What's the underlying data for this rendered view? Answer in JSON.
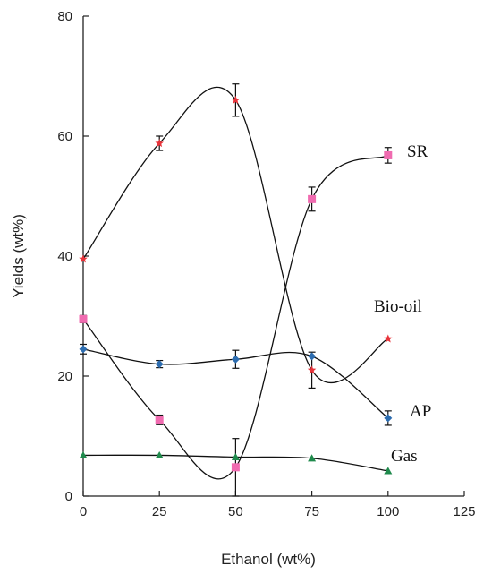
{
  "chart_data": {
    "type": "line",
    "title": "",
    "xlabel": "Ethanol (wt%)",
    "ylabel": "Yields (wt%)",
    "xlim": [
      0,
      125
    ],
    "ylim": [
      0,
      80
    ],
    "xticks": [
      0,
      25,
      50,
      75,
      100,
      125
    ],
    "yticks": [
      0,
      20,
      40,
      60,
      80
    ],
    "grid": false,
    "legend": "inline labels at right",
    "series": [
      {
        "name": "SR",
        "marker": "square",
        "color": "#f06bb0",
        "x": [
          0,
          25,
          50,
          75,
          100
        ],
        "y": [
          29.5,
          12.7,
          4.8,
          49.5,
          56.8
        ],
        "err": [
          0.6,
          0.8,
          4.8,
          2.0,
          1.3
        ]
      },
      {
        "name": "Bio-oil",
        "marker": "star",
        "color": "#e8333a",
        "x": [
          0,
          25,
          50,
          75,
          100
        ],
        "y": [
          39.5,
          58.8,
          66.0,
          21.0,
          26.2
        ],
        "err": [
          0,
          1.2,
          2.7,
          3.0,
          0
        ]
      },
      {
        "name": "AP",
        "marker": "diamond",
        "color": "#2d6db0",
        "x": [
          0,
          25,
          50,
          75,
          100
        ],
        "y": [
          24.5,
          22.0,
          22.8,
          23.3,
          13.0
        ],
        "err": [
          0.8,
          0.6,
          1.5,
          0,
          1.2
        ]
      },
      {
        "name": "Gas",
        "marker": "triangle",
        "color": "#1f8a4c",
        "x": [
          0,
          25,
          50,
          75,
          100
        ],
        "y": [
          6.8,
          6.8,
          6.5,
          6.3,
          4.2
        ],
        "err": [
          0,
          0,
          0,
          0,
          0
        ]
      }
    ],
    "labels": {
      "sr": "SR",
      "biooil": "Bio-oil",
      "ap": "AP",
      "gas": "Gas"
    }
  }
}
